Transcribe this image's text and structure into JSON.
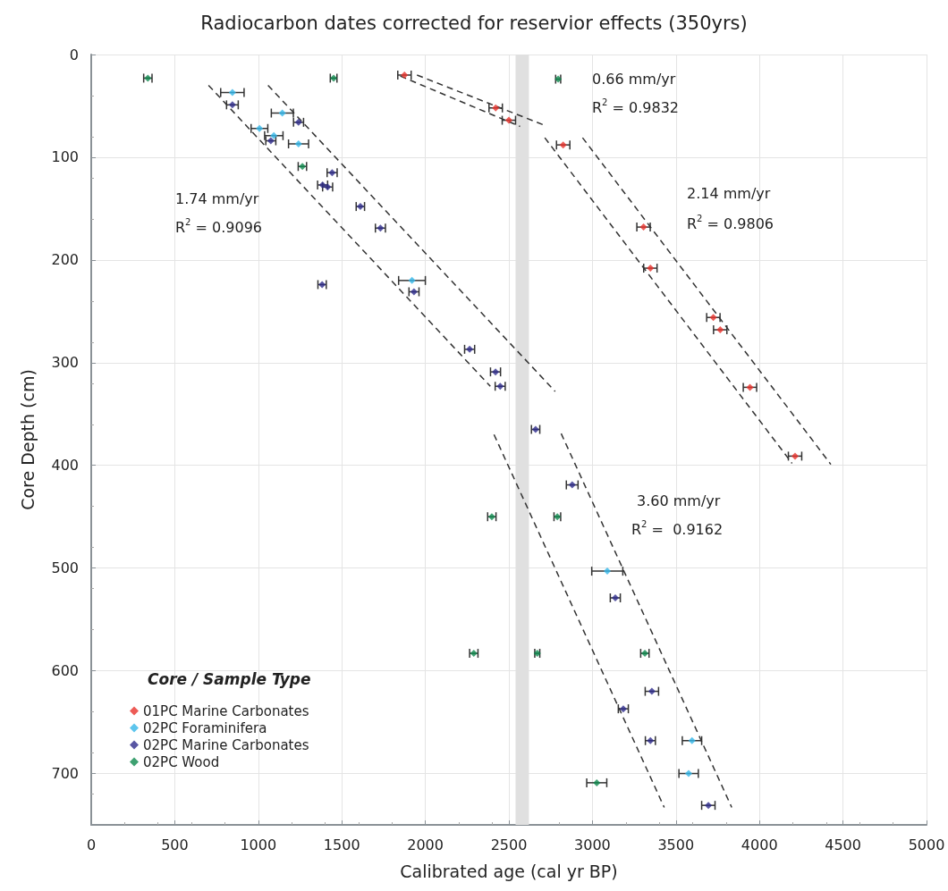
{
  "chart_data": {
    "type": "scatter",
    "title": "Radiocarbon dates corrected for reservior effects (350yrs)",
    "xlabel": "Calibrated age (cal yr BP)",
    "ylabel": "Core Depth (cm)",
    "legend_title": "Core / Sample Type",
    "xlim": [
      0,
      5000
    ],
    "xticks": [
      0,
      500,
      1000,
      1500,
      2000,
      2500,
      3000,
      3500,
      4000,
      4500,
      5000
    ],
    "ylim": [
      750,
      0
    ],
    "yticks": [
      0,
      100,
      200,
      300,
      400,
      500,
      600,
      700
    ],
    "grid": true,
    "legend": "bottom left",
    "marker": "diamond",
    "bands": [
      {
        "axis": "x",
        "from": 2540,
        "to": 2620,
        "color": "#e0e0e0"
      }
    ],
    "annotations": [
      "0.66 mm/yr",
      "R$^{2}$ = 0.9832",
      "1.74 mm/yr",
      "R$^{2}$ = 0.9096",
      "2.14 mm/yr",
      "R$^{2}$ = 0.9806",
      "3.60 mm/yr",
      "R$^{2}$ =  0.9162"
    ],
    "series": [
      {
        "name": "01PC Marine Carbonates",
        "color": "#e8322c",
        "x": [
          1875,
          2421,
          2500,
          2825,
          3306,
          3347,
          3724,
          3765,
          3943,
          4213
        ],
        "values": [
          20,
          52,
          64,
          88,
          168,
          208,
          256,
          268,
          324,
          391
        ],
        "xerrors": [
          40,
          40,
          40,
          40,
          40,
          40,
          40,
          40,
          40,
          40
        ]
      },
      {
        "name": "02PC Foraminifera",
        "color": "#35b6e8",
        "x": [
          845,
          1144,
          1007,
          1093,
          1241,
          1920,
          3089,
          3596,
          3576
        ],
        "values": [
          37,
          57,
          72,
          79,
          87,
          220,
          503,
          668,
          700
        ],
        "xerrors": [
          70,
          66,
          50,
          55,
          60,
          80,
          93,
          58,
          58
        ]
      },
      {
        "name": "02PC Marine Carbonates",
        "color": "#2e2c8c",
        "x": [
          845,
          1241,
          1075,
          1442,
          1385,
          1415,
          1611,
          1731,
          1382,
          1932,
          2265,
          2420,
          2448,
          2660,
          2879,
          3137,
          3356,
          3185,
          3347,
          3694
        ],
        "values": [
          49,
          66,
          84,
          115,
          127,
          129,
          148,
          169,
          224,
          231,
          287,
          309,
          323,
          365,
          419,
          529,
          620,
          637,
          668,
          731
        ],
        "xerrors": [
          35,
          30,
          30,
          30,
          30,
          30,
          25,
          30,
          25,
          30,
          30,
          30,
          30,
          25,
          35,
          30,
          40,
          30,
          30,
          40
        ]
      },
      {
        "name": "02PC Wood",
        "color": "#0e8a4e",
        "x": [
          339,
          1451,
          1264,
          2795,
          2398,
          2790,
          2290,
          2670,
          3314,
          3026
        ],
        "values": [
          23,
          23,
          109,
          24,
          450,
          450,
          583,
          583,
          583,
          709
        ],
        "xerrors": [
          25,
          20,
          25,
          15,
          25,
          20,
          25,
          15,
          25,
          60
        ]
      },
      {
        "type": "line",
        "color": "#333333",
        "line_style": "dashed",
        "marker": "none",
        "x": [
          702,
          2389
        ],
        "values": [
          30,
          323
        ]
      },
      {
        "type": "line",
        "color": "#333333",
        "line_style": "dashed",
        "marker": "none",
        "x": [
          1058,
          2777
        ],
        "values": [
          30,
          328
        ]
      },
      {
        "type": "line",
        "color": "#333333",
        "line_style": "dashed",
        "marker": "none",
        "x": [
          1950,
          2715
        ],
        "values": [
          20,
          69
        ]
      },
      {
        "type": "line",
        "color": "#333333",
        "line_style": "dashed",
        "marker": "none",
        "x": [
          1850,
          2567
        ],
        "values": [
          21,
          70
        ]
      },
      {
        "type": "line",
        "color": "#333333",
        "line_style": "dashed",
        "marker": "none",
        "x": [
          2715,
          4195
        ],
        "values": [
          81,
          398
        ]
      },
      {
        "type": "line",
        "color": "#333333",
        "line_style": "dashed",
        "marker": "none",
        "x": [
          2941,
          4427
        ],
        "values": [
          81,
          399
        ]
      },
      {
        "type": "line",
        "color": "#333333",
        "line_style": "dashed",
        "marker": "none",
        "x": [
          2411,
          3430
        ],
        "values": [
          370,
          733
        ]
      },
      {
        "type": "line",
        "color": "#333333",
        "line_style": "dashed",
        "marker": "none",
        "x": [
          2813,
          3834
        ],
        "values": [
          369,
          733
        ]
      }
    ]
  }
}
